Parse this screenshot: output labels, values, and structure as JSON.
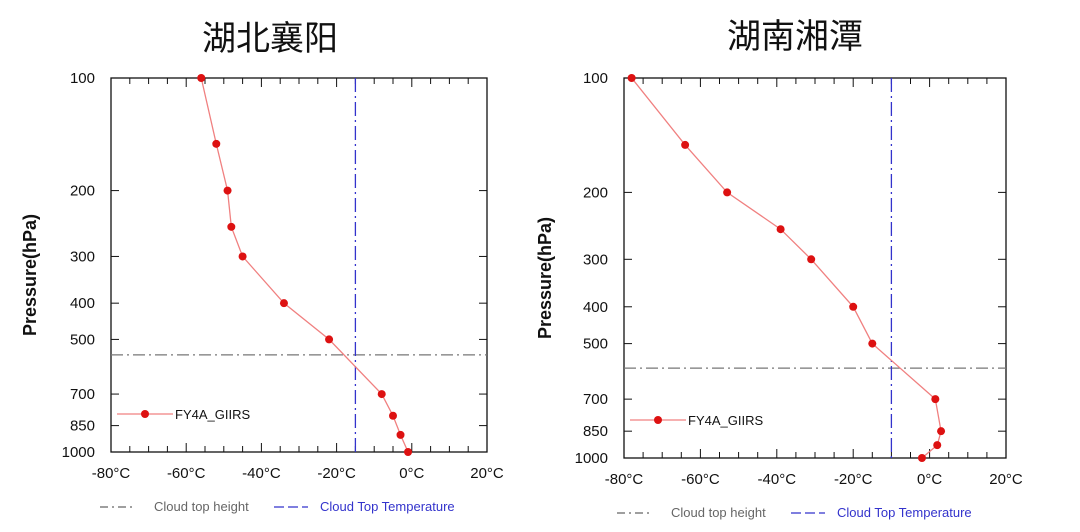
{
  "chart_data": [
    {
      "type": "line",
      "title": "湖北襄阳",
      "ylabel": "Pressure(hPa)",
      "xlabel": "",
      "yscale": "log",
      "ylim": [
        1000,
        100
      ],
      "xlim": [
        -80,
        20
      ],
      "xticks": [
        -80,
        -60,
        -40,
        -20,
        0,
        20
      ],
      "xtick_labels": [
        "-80°C",
        "-60°C",
        "-40°C",
        "-20°C",
        "0°C",
        "20°C"
      ],
      "yticks": [
        100,
        200,
        300,
        400,
        500,
        700,
        850,
        1000
      ],
      "ytick_labels": [
        "100",
        "200",
        "300",
        "400",
        "500",
        "700",
        "850",
        "1000"
      ],
      "series": [
        {
          "name": "FY4A_GIIRS",
          "color": "#dd1111",
          "x": [
            -56,
            -52,
            -49,
            -48,
            -45,
            -34,
            -22,
            -8,
            -5,
            -3,
            -1
          ],
          "y": [
            100,
            150,
            200,
            250,
            300,
            400,
            500,
            700,
            800,
            900,
            1000
          ]
        }
      ],
      "cloud_top_pressure": 550,
      "cloud_top_temperature": -15,
      "legend_position": "bottom-left"
    },
    {
      "type": "line",
      "title": "湖南湘潭",
      "ylabel": "Pressure(hPa)",
      "xlabel": "",
      "yscale": "log",
      "ylim": [
        1000,
        100
      ],
      "xlim": [
        -80,
        20
      ],
      "xticks": [
        -80,
        -60,
        -40,
        -20,
        0,
        20
      ],
      "xtick_labels": [
        "-80°C",
        "-60°C",
        "-40°C",
        "-20°C",
        "0°C",
        "20°C"
      ],
      "yticks": [
        100,
        200,
        300,
        400,
        500,
        700,
        850,
        1000
      ],
      "ytick_labels": [
        "100",
        "200",
        "300",
        "400",
        "500",
        "700",
        "850",
        "1000"
      ],
      "series": [
        {
          "name": "FY4A_GIIRS",
          "color": "#dd1111",
          "x": [
            -78,
            -64,
            -53,
            -39,
            -31,
            -20,
            -15,
            1.5,
            3,
            2,
            -2
          ],
          "y": [
            100,
            150,
            200,
            250,
            300,
            400,
            500,
            700,
            850,
            925,
            1000
          ]
        }
      ],
      "cloud_top_pressure": 580,
      "cloud_top_temperature": -10,
      "legend_position": "bottom-left"
    }
  ],
  "bottom_legend": [
    {
      "label": "Cloud top height",
      "color": "#666666",
      "style": "dash-dot"
    },
    {
      "label": "Cloud Top Temperature",
      "color": "#3333cc",
      "style": "dashed"
    }
  ]
}
